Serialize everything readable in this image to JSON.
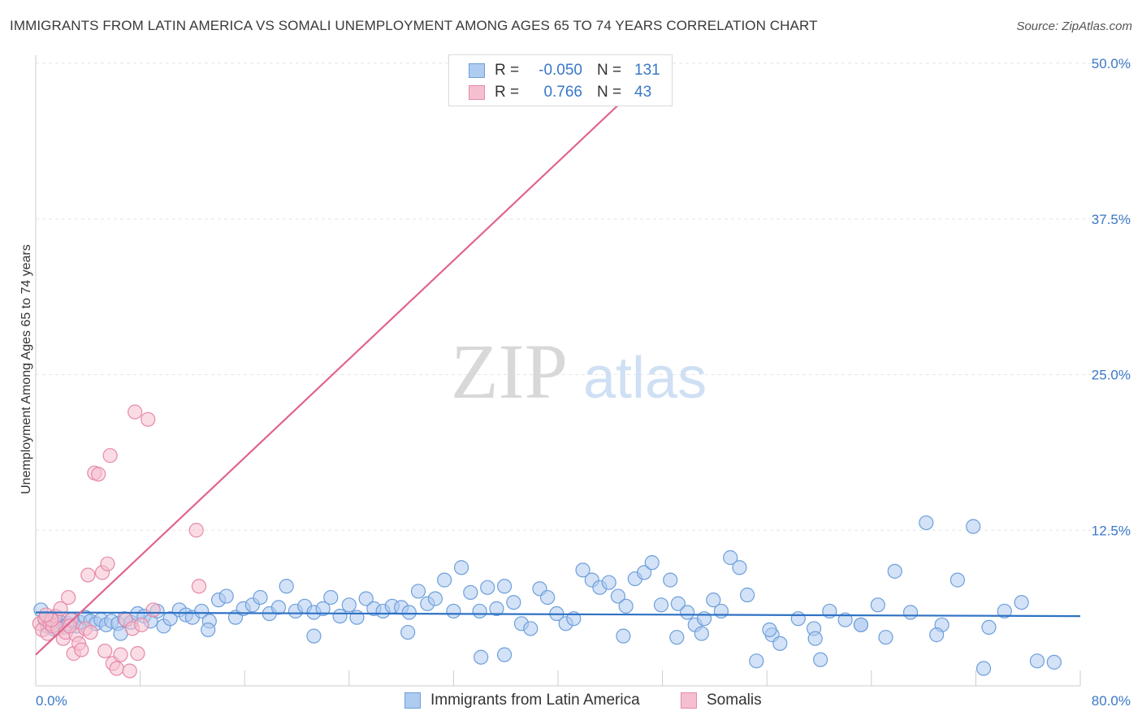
{
  "title": "IMMIGRANTS FROM LATIN AMERICA VS SOMALI UNEMPLOYMENT AMONG AGES 65 TO 74 YEARS CORRELATION CHART",
  "source": "Source: ZipAtlas.com",
  "watermark": {
    "zip": "ZIP",
    "atlas": "atlas"
  },
  "colors": {
    "blue_fill": "#aecbf0",
    "blue_stroke": "#6d9fdb",
    "blue_line": "#2f72c4",
    "pink_fill": "#f6bfd0",
    "pink_stroke": "#e58aa8",
    "pink_line": "#e0648c",
    "grid": "#e6e6e6",
    "axis_label": "#3a78c8"
  },
  "legend": {
    "r_label": "R =",
    "n_label": "N =",
    "series": [
      {
        "r": "-0.050",
        "n": "131"
      },
      {
        "r": "0.766",
        "n": "43"
      }
    ]
  },
  "bottom_legend": [
    "Immigrants from Latin America",
    "Somalis"
  ],
  "chart_data": {
    "type": "scatter",
    "xlabel": "",
    "ylabel": "Unemployment Among Ages 65 to 74 years",
    "xlim": [
      0,
      80
    ],
    "ylim": [
      0,
      50
    ],
    "x_tick_labels": [
      "0.0%",
      "80.0%"
    ],
    "y_tick_labels": [
      "12.5%",
      "25.0%",
      "37.5%",
      "50.0%"
    ],
    "y_ticks": [
      12.5,
      25,
      37.5,
      50
    ],
    "x_minor_ticks": [
      0,
      8,
      16,
      24,
      32,
      40,
      48,
      56,
      64,
      72,
      80
    ],
    "grid": true,
    "series": [
      {
        "name": "Immigrants from Latin America",
        "trend": {
          "x": [
            0,
            80
          ],
          "y": [
            5.9,
            5.6
          ]
        },
        "points": [
          [
            0.4,
            6.1
          ],
          [
            0.7,
            5.3
          ],
          [
            0.9,
            4.8
          ],
          [
            1.1,
            5.0
          ],
          [
            1.3,
            4.6
          ],
          [
            1.5,
            5.2
          ],
          [
            1.7,
            4.9
          ],
          [
            1.9,
            5.1
          ],
          [
            2.2,
            4.7
          ],
          [
            2.5,
            5.0
          ],
          [
            2.8,
            5.3
          ],
          [
            3.1,
            4.8
          ],
          [
            3.4,
            5.1
          ],
          [
            3.8,
            5.5
          ],
          [
            4.2,
            5.2
          ],
          [
            4.6,
            5.0
          ],
          [
            5.0,
            5.3
          ],
          [
            5.4,
            4.9
          ],
          [
            5.8,
            5.2
          ],
          [
            6.3,
            5.0
          ],
          [
            6.8,
            5.4
          ],
          [
            7.3,
            5.1
          ],
          [
            7.8,
            5.8
          ],
          [
            8.3,
            5.6
          ],
          [
            8.8,
            5.2
          ],
          [
            9.3,
            6.0
          ],
          [
            9.8,
            4.8
          ],
          [
            10.3,
            5.4
          ],
          [
            11.0,
            6.1
          ],
          [
            11.5,
            5.7
          ],
          [
            12.0,
            5.5
          ],
          [
            12.7,
            6.0
          ],
          [
            13.3,
            5.2
          ],
          [
            14.0,
            6.9
          ],
          [
            14.6,
            7.2
          ],
          [
            15.3,
            5.5
          ],
          [
            15.9,
            6.2
          ],
          [
            16.6,
            6.5
          ],
          [
            17.2,
            7.1
          ],
          [
            17.9,
            5.8
          ],
          [
            18.6,
            6.3
          ],
          [
            19.2,
            8.0
          ],
          [
            19.9,
            6.0
          ],
          [
            20.6,
            6.4
          ],
          [
            21.3,
            5.9
          ],
          [
            22.0,
            6.2
          ],
          [
            22.6,
            7.1
          ],
          [
            23.3,
            5.6
          ],
          [
            24.0,
            6.5
          ],
          [
            24.6,
            5.5
          ],
          [
            25.3,
            7.0
          ],
          [
            25.9,
            6.2
          ],
          [
            26.6,
            6.0
          ],
          [
            27.3,
            6.4
          ],
          [
            28.0,
            6.3
          ],
          [
            28.6,
            5.9
          ],
          [
            29.3,
            7.6
          ],
          [
            30.0,
            6.6
          ],
          [
            30.6,
            7.0
          ],
          [
            31.3,
            8.5
          ],
          [
            32.0,
            6.0
          ],
          [
            32.6,
            9.5
          ],
          [
            33.3,
            7.5
          ],
          [
            34.0,
            6.0
          ],
          [
            34.6,
            7.9
          ],
          [
            35.3,
            6.2
          ],
          [
            35.9,
            8.0
          ],
          [
            36.6,
            6.7
          ],
          [
            37.2,
            5.0
          ],
          [
            37.9,
            4.6
          ],
          [
            38.6,
            7.8
          ],
          [
            39.2,
            7.1
          ],
          [
            39.9,
            5.8
          ],
          [
            40.6,
            5.0
          ],
          [
            41.2,
            5.4
          ],
          [
            41.9,
            9.3
          ],
          [
            42.6,
            8.5
          ],
          [
            43.2,
            7.9
          ],
          [
            43.9,
            8.3
          ],
          [
            44.6,
            7.2
          ],
          [
            45.2,
            6.4
          ],
          [
            45.9,
            8.6
          ],
          [
            46.6,
            9.1
          ],
          [
            47.2,
            9.9
          ],
          [
            47.9,
            6.5
          ],
          [
            48.6,
            8.5
          ],
          [
            49.2,
            6.6
          ],
          [
            49.9,
            5.9
          ],
          [
            50.5,
            4.9
          ],
          [
            51.2,
            5.4
          ],
          [
            51.9,
            6.9
          ],
          [
            52.5,
            6.0
          ],
          [
            53.2,
            10.3
          ],
          [
            53.9,
            9.5
          ],
          [
            54.5,
            7.3
          ],
          [
            55.2,
            2.0
          ],
          [
            56.4,
            4.1
          ],
          [
            57.0,
            3.4
          ],
          [
            58.4,
            5.4
          ],
          [
            59.6,
            4.6
          ],
          [
            60.8,
            6.0
          ],
          [
            62.0,
            5.3
          ],
          [
            63.2,
            4.9
          ],
          [
            64.5,
            6.5
          ],
          [
            65.8,
            9.2
          ],
          [
            67.0,
            5.9
          ],
          [
            68.2,
            13.1
          ],
          [
            69.4,
            4.9
          ],
          [
            70.6,
            8.5
          ],
          [
            71.8,
            12.8
          ],
          [
            73.0,
            4.7
          ],
          [
            74.2,
            6.0
          ],
          [
            75.5,
            6.7
          ],
          [
            76.7,
            2.0
          ],
          [
            78.0,
            1.9
          ],
          [
            6.5,
            4.2
          ],
          [
            13.2,
            4.5
          ],
          [
            21.3,
            4.0
          ],
          [
            28.5,
            4.3
          ],
          [
            34.1,
            2.3
          ],
          [
            35.9,
            2.5
          ],
          [
            45.0,
            4.0
          ],
          [
            49.1,
            3.9
          ],
          [
            51.0,
            4.2
          ],
          [
            56.2,
            4.5
          ],
          [
            59.7,
            3.8
          ],
          [
            60.1,
            2.1
          ],
          [
            63.2,
            4.9
          ],
          [
            65.1,
            3.9
          ],
          [
            69.0,
            4.1
          ],
          [
            72.6,
            1.4
          ]
        ]
      },
      {
        "name": "Somalis",
        "trend": {
          "x": [
            0,
            48
          ],
          "y": [
            2.5,
            50.0
          ]
        },
        "points": [
          [
            0.3,
            5.0
          ],
          [
            0.5,
            4.5
          ],
          [
            0.7,
            5.4
          ],
          [
            0.9,
            4.2
          ],
          [
            1.1,
            5.0
          ],
          [
            1.3,
            4.8
          ],
          [
            1.5,
            5.6
          ],
          [
            1.7,
            4.6
          ],
          [
            1.9,
            6.2
          ],
          [
            2.1,
            3.8
          ],
          [
            2.3,
            4.3
          ],
          [
            2.5,
            7.1
          ],
          [
            2.7,
            5.3
          ],
          [
            2.9,
            2.6
          ],
          [
            3.1,
            4.1
          ],
          [
            3.3,
            3.4
          ],
          [
            3.5,
            2.9
          ],
          [
            3.8,
            4.6
          ],
          [
            4.0,
            8.9
          ],
          [
            4.2,
            4.3
          ],
          [
            4.5,
            17.1
          ],
          [
            4.8,
            17.0
          ],
          [
            5.1,
            9.1
          ],
          [
            5.3,
            2.8
          ],
          [
            5.5,
            9.8
          ],
          [
            5.7,
            18.5
          ],
          [
            5.9,
            1.8
          ],
          [
            6.2,
            1.4
          ],
          [
            6.5,
            2.5
          ],
          [
            6.9,
            5.3
          ],
          [
            7.2,
            1.2
          ],
          [
            7.4,
            4.6
          ],
          [
            7.6,
            22.0
          ],
          [
            7.8,
            2.6
          ],
          [
            8.1,
            4.9
          ],
          [
            8.6,
            21.4
          ],
          [
            9.0,
            6.1
          ],
          [
            12.3,
            12.5
          ],
          [
            12.5,
            8.0
          ],
          [
            1.2,
            5.3
          ],
          [
            0.8,
            5.7
          ],
          [
            2.6,
            4.8
          ],
          [
            41.8,
            48.6
          ]
        ]
      }
    ]
  }
}
